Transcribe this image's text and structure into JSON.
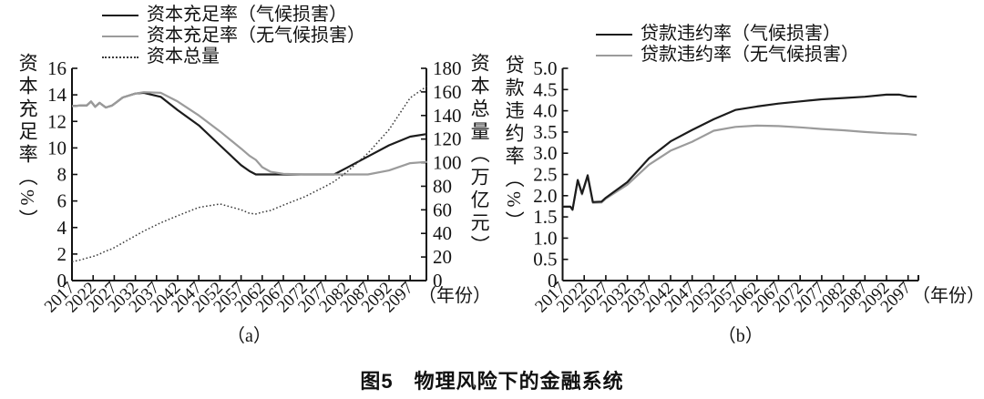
{
  "figure": {
    "caption": "图5　物理风险下的金融系统",
    "panel_a_label": "（a）",
    "panel_b_label": "（b）"
  },
  "colors": {
    "climate_line": "#1c1c1c",
    "no_climate_line": "#9b9b9b",
    "dotted_line": "#3a3a3a",
    "axis": "#111111"
  },
  "chart_data": [
    {
      "id": "a",
      "type": "line",
      "panel": "（a）",
      "xlabel": "（年份）",
      "x_tick_labels": [
        "2017",
        "2022",
        "2027",
        "2032",
        "2037",
        "2042",
        "2047",
        "2052",
        "2057",
        "2062",
        "2067",
        "2072",
        "2077",
        "2082",
        "2087",
        "2092",
        "2097"
      ],
      "y_left": {
        "label": "资本充足率（%）",
        "ticks": [
          "0",
          "2",
          "4",
          "6",
          "8",
          "10",
          "12",
          "14",
          "16"
        ],
        "min": 0,
        "max": 16
      },
      "y_right": {
        "label": "资本总量（万亿元）",
        "ticks": [
          "0",
          "20",
          "40",
          "60",
          "80",
          "100",
          "120",
          "140",
          "160",
          "180"
        ],
        "min": 0,
        "max": 180
      },
      "x": [
        2017,
        2019,
        2020.5,
        2021.5,
        2022.5,
        2023.5,
        2025,
        2026.5,
        2029,
        2032,
        2034,
        2038,
        2042,
        2047,
        2052,
        2057,
        2059,
        2060.5,
        2062,
        2064,
        2067,
        2072,
        2077,
        2079,
        2082,
        2087,
        2092,
        2097,
        2101
      ],
      "series": [
        {
          "name": "资本充足率（气候损害）",
          "axis": "left",
          "style": "solid-dark",
          "values": [
            13.15,
            13.2,
            13.2,
            13.5,
            13.1,
            13.4,
            13.05,
            13.2,
            13.8,
            14.1,
            14.15,
            13.85,
            12.85,
            11.7,
            10.2,
            8.7,
            8.25,
            8.0,
            8.0,
            8.0,
            8.0,
            8.0,
            8.0,
            8.0,
            8.5,
            9.35,
            10.2,
            10.85,
            11.05
          ]
        },
        {
          "name": "资本充足率（无气候损害）",
          "axis": "left",
          "style": "solid-gray",
          "values": [
            13.15,
            13.2,
            13.2,
            13.5,
            13.1,
            13.4,
            13.05,
            13.2,
            13.8,
            14.1,
            14.2,
            14.15,
            13.5,
            12.45,
            11.25,
            9.95,
            9.4,
            9.1,
            8.55,
            8.2,
            8.05,
            8.0,
            8.0,
            8.0,
            8.0,
            8.0,
            8.3,
            8.85,
            8.95
          ]
        },
        {
          "name": "资本总量",
          "axis": "right",
          "style": "dotted",
          "values": [
            16,
            17.5,
            19,
            20,
            21,
            22.5,
            25,
            27,
            32,
            38,
            42,
            49,
            55,
            62,
            65,
            60,
            57,
            56.5,
            58,
            59.5,
            64,
            71,
            80,
            84,
            92,
            108,
            128,
            155,
            165
          ]
        }
      ]
    },
    {
      "id": "b",
      "type": "line",
      "panel": "（b）",
      "xlabel": "（年份）",
      "x_tick_labels": [
        "2017",
        "2022",
        "2027",
        "2032",
        "2037",
        "2042",
        "2047",
        "2052",
        "2057",
        "2062",
        "2067",
        "2072",
        "2077",
        "2082",
        "2087",
        "2092",
        "2097"
      ],
      "y_left": {
        "label": "贷款违约率（%）",
        "ticks": [
          "0",
          "0.5",
          "1.0",
          "1.5",
          "2.0",
          "2.5",
          "3.0",
          "3.5",
          "4.0",
          "4.5",
          "5.0"
        ],
        "min": 0,
        "max": 5
      },
      "x": [
        2017,
        2018.8,
        2019.3,
        2020.5,
        2021.5,
        2022.8,
        2024,
        2026,
        2027,
        2032,
        2037,
        2042,
        2047,
        2052,
        2057,
        2062,
        2067,
        2072,
        2077,
        2082,
        2087,
        2092,
        2095,
        2097,
        2099
      ],
      "series": [
        {
          "name": "贷款违约率（气候损害）",
          "axis": "left",
          "style": "solid-dark",
          "values": [
            1.74,
            1.74,
            1.67,
            2.37,
            2.05,
            2.48,
            1.85,
            1.86,
            1.95,
            2.32,
            2.88,
            3.28,
            3.55,
            3.8,
            4.02,
            4.1,
            4.17,
            4.22,
            4.27,
            4.3,
            4.33,
            4.38,
            4.38,
            4.34,
            4.33
          ]
        },
        {
          "name": "贷款违约率（无气候损害）",
          "axis": "left",
          "style": "solid-gray",
          "values": [
            1.74,
            1.74,
            1.67,
            2.35,
            2.03,
            2.45,
            1.83,
            1.84,
            1.93,
            2.26,
            2.73,
            3.06,
            3.27,
            3.53,
            3.62,
            3.65,
            3.64,
            3.61,
            3.57,
            3.54,
            3.5,
            3.47,
            3.46,
            3.45,
            3.43
          ]
        }
      ]
    }
  ]
}
